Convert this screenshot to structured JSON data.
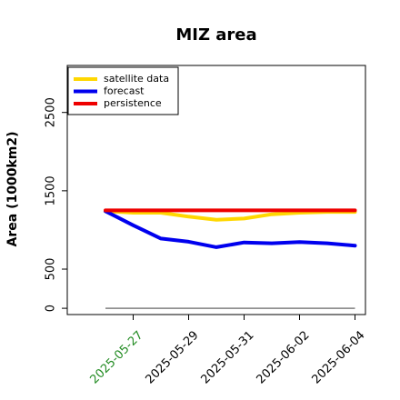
{
  "chart_data": {
    "type": "line",
    "title": "MIZ area",
    "xlabel": "",
    "ylabel": "Area (1000km2)",
    "x": [
      "2025-05-26",
      "2025-05-27",
      "2025-05-28",
      "2025-05-29",
      "2025-05-30",
      "2025-05-31",
      "2025-06-01",
      "2025-06-02",
      "2025-06-03",
      "2025-06-04"
    ],
    "x_tick_labels": [
      "2025-05-27",
      "2025-05-29",
      "2025-05-31",
      "2025-06-02",
      "2025-06-04"
    ],
    "x_tick_colors": [
      "#228B22",
      "#000000",
      "#000000",
      "#000000",
      "#000000"
    ],
    "y_ticks": [
      0,
      500,
      1500,
      2500
    ],
    "ylim": [
      -80,
      3100
    ],
    "grid": false,
    "legend_position": "top-left",
    "baseline": {
      "value": 0,
      "color": "#808080"
    },
    "series": [
      {
        "name": "satellite data",
        "color": "#FFD700",
        "values": [
          1240,
          1220,
          1220,
          1170,
          1130,
          1145,
          1200,
          1220,
          1230,
          1230
        ]
      },
      {
        "name": "forecast",
        "color": "#0000EE",
        "values": [
          1240,
          1060,
          890,
          850,
          780,
          840,
          830,
          845,
          830,
          800
        ]
      },
      {
        "name": "persistence",
        "color": "#EE0000",
        "values": [
          1250,
          1250,
          1250,
          1250,
          1250,
          1250,
          1250,
          1250,
          1250,
          1250
        ]
      }
    ]
  }
}
